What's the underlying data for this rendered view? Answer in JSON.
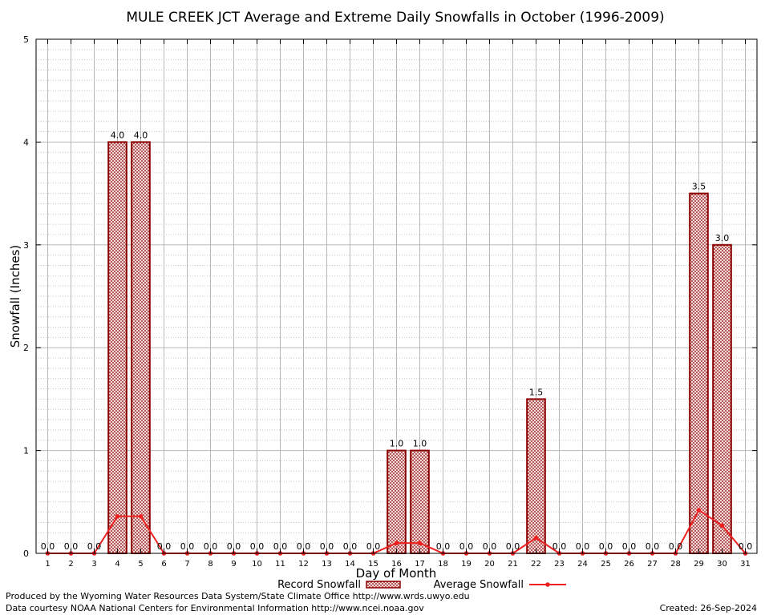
{
  "chart_data": {
    "type": "bar",
    "title": "MULE CREEK JCT Average and Extreme Daily Snowfalls in October (1996-2009)",
    "xlabel": "Day of Month",
    "ylabel": "Snowfall (Inches)",
    "ylim": [
      0,
      5
    ],
    "yticks": [
      "0",
      "1",
      "2",
      "3",
      "4",
      "5"
    ],
    "categories": [
      "1",
      "2",
      "3",
      "4",
      "5",
      "6",
      "7",
      "8",
      "9",
      "10",
      "11",
      "12",
      "13",
      "14",
      "15",
      "16",
      "17",
      "18",
      "19",
      "20",
      "21",
      "22",
      "23",
      "24",
      "25",
      "26",
      "27",
      "28",
      "29",
      "30",
      "31"
    ],
    "grid": true,
    "legend_position": "bottom",
    "series": [
      {
        "name": "Record Snowfall",
        "kind": "bar",
        "color": "#8b0000",
        "values": [
          0.0,
          0.0,
          0.0,
          4.0,
          4.0,
          0.0,
          0.0,
          0.0,
          0.0,
          0.0,
          0.0,
          0.0,
          0.0,
          0.0,
          0.0,
          1.0,
          1.0,
          0.0,
          0.0,
          0.0,
          0.0,
          1.5,
          0.0,
          0.0,
          0.0,
          0.0,
          0.0,
          0.0,
          3.5,
          3.0,
          0.0
        ],
        "labels": [
          "0.0",
          "0.0",
          "0.0",
          "4.0",
          "4.0",
          "0.0",
          "0.0",
          "0.0",
          "0.0",
          "0.0",
          "0.0",
          "0.0",
          "0.0",
          "0.0",
          "0.0",
          "1.0",
          "1.0",
          "0.0",
          "0.0",
          "0.0",
          "0.0",
          "1.5",
          "0.0",
          "0.0",
          "0.0",
          "0.0",
          "0.0",
          "0.0",
          "3.5",
          "3.0",
          "0.0"
        ]
      },
      {
        "name": "Average Snowfall",
        "kind": "line",
        "color": "#ee2020",
        "values": [
          0,
          0,
          0,
          0.36,
          0.36,
          0,
          0,
          0,
          0,
          0,
          0,
          0,
          0,
          0,
          0,
          0.1,
          0.1,
          0,
          0,
          0,
          0,
          0.15,
          0,
          0,
          0,
          0,
          0,
          0,
          0.42,
          0.27,
          0
        ]
      }
    ]
  },
  "footer": {
    "produced_by": "Produced by the Wyoming Water Resources Data System/State Climate Office http://www.wrds.uwyo.edu",
    "data_courtesy": "Data courtesy NOAA National Centers for Environmental Information http://www.ncei.noaa.gov",
    "created": "Created:  26-Sep-2024"
  }
}
